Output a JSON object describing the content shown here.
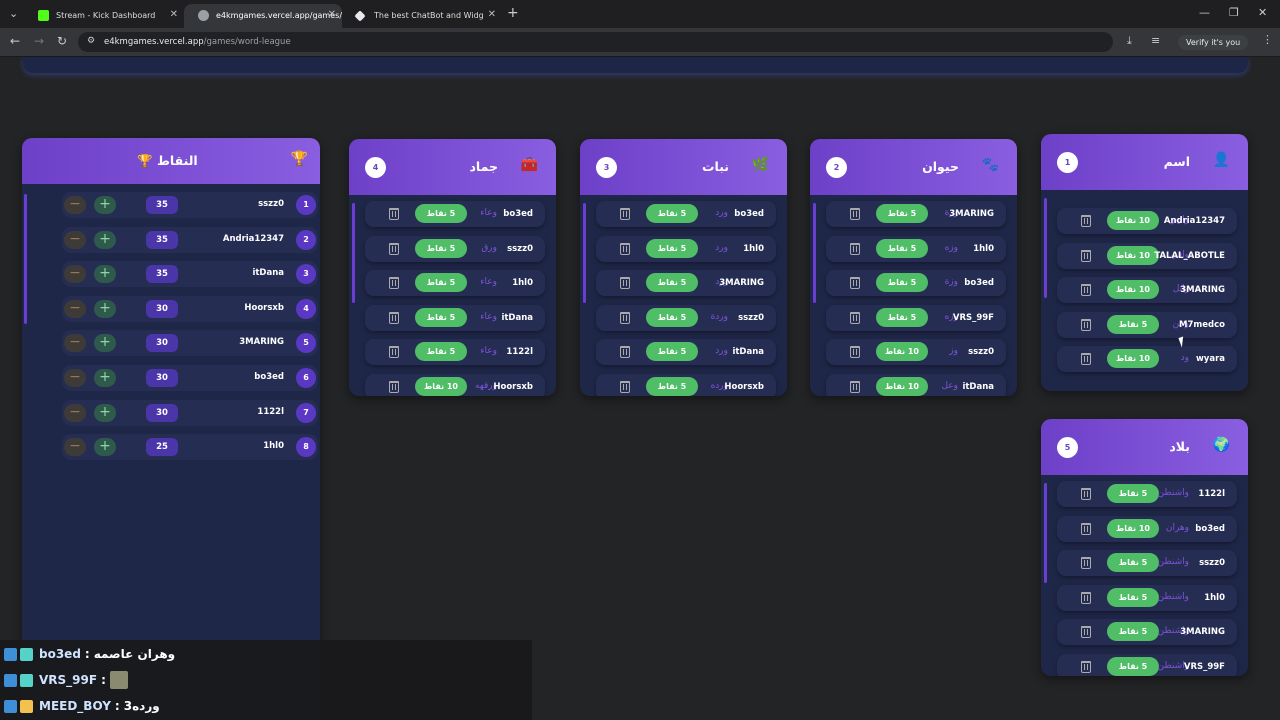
{
  "browser": {
    "tabs": [
      {
        "title": "Stream - Kick Dashboard",
        "favicon": "kick-icon",
        "color": "#53fc18"
      },
      {
        "title": "e4kmgames.vercel.app/games/...",
        "favicon": "globe-icon",
        "color": "#9aa0a6"
      },
      {
        "title": "The best ChatBot and Widg",
        "favicon": "bot-icon",
        "color": "#e8eaed"
      }
    ],
    "url_host": "e4kmgames.vercel.app",
    "url_path": "/games/word-league",
    "profile_label": "Verify it's you"
  },
  "scoreboard": {
    "title": "النقاط",
    "icon": "trophy-icon",
    "rows": [
      {
        "rank": "1",
        "name": "sszz0",
        "points": "35"
      },
      {
        "rank": "2",
        "name": "Andria12347",
        "points": "35"
      },
      {
        "rank": "3",
        "name": "itDana",
        "points": "35"
      },
      {
        "rank": "4",
        "name": "Hoorsxb",
        "points": "30"
      },
      {
        "rank": "5",
        "name": "3MARING",
        "points": "30"
      },
      {
        "rank": "6",
        "name": "bo3ed",
        "points": "30"
      },
      {
        "rank": "7",
        "name": "1122l",
        "points": "30"
      },
      {
        "rank": "8",
        "name": "1hl0",
        "points": "25"
      }
    ]
  },
  "categories": [
    {
      "id": "jamad",
      "title": "جماد",
      "number": "4",
      "icon": "toolbox-icon",
      "rows": [
        {
          "name": "bo3ed",
          "word": "وعاء",
          "points": "5 نقاط"
        },
        {
          "name": "sszz0",
          "word": "ورق",
          "points": "5 نقاط"
        },
        {
          "name": "1hl0",
          "word": "وعاء",
          "points": "5 نقاط"
        },
        {
          "name": "itDana",
          "word": "وعاء",
          "points": "5 نقاط"
        },
        {
          "name": "1122l",
          "word": "وعاء",
          "points": "5 نقاط"
        },
        {
          "name": "Hoorsxb",
          "word": "ورقهه",
          "points": "10 نقاط"
        }
      ]
    },
    {
      "id": "nabat",
      "title": "نبات",
      "number": "3",
      "icon": "leaf-icon",
      "rows": [
        {
          "name": "bo3ed",
          "word": "ورد",
          "points": "5 نقاط"
        },
        {
          "name": "1hl0",
          "word": "ورد",
          "points": "5 نقاط"
        },
        {
          "name": "3MARING",
          "word": "ورد",
          "points": "5 نقاط"
        },
        {
          "name": "sszz0",
          "word": "وردة",
          "points": "5 نقاط"
        },
        {
          "name": "itDana",
          "word": "ورد",
          "points": "5 نقاط"
        },
        {
          "name": "Hoorsxb",
          "word": "ورده",
          "points": "5 نقاط"
        }
      ]
    },
    {
      "id": "hayawan",
      "title": "حيوان",
      "number": "2",
      "icon": "paw-icon",
      "rows": [
        {
          "name": "3MARING",
          "word": "وزة",
          "points": "5 نقاط"
        },
        {
          "name": "1hl0",
          "word": "وزه",
          "points": "5 نقاط"
        },
        {
          "name": "bo3ed",
          "word": "وزة",
          "points": "5 نقاط"
        },
        {
          "name": "VRS_99F",
          "word": "وزه",
          "points": "5 نقاط"
        },
        {
          "name": "sszz0",
          "word": "وز",
          "points": "10 نقاط"
        },
        {
          "name": "itDana",
          "word": "وعل",
          "points": "10 نقاط"
        }
      ]
    },
    {
      "id": "ism",
      "title": "اسم",
      "number": "1",
      "icon": "person-icon",
      "rows": [
        {
          "name": "Andria12347",
          "word": "وارين",
          "points": "10 نقاط"
        },
        {
          "name": "TALAL_ABOTLE",
          "word": "وافي",
          "points": "10 نقاط"
        },
        {
          "name": "3MARING",
          "word": "وائل",
          "points": "10 نقاط"
        },
        {
          "name": "M7medco",
          "word": "وتين",
          "points": "5 نقاط"
        },
        {
          "name": "wyara",
          "word": "ود",
          "points": "10 نقاط"
        }
      ]
    },
    {
      "id": "bilad",
      "title": "بلاد",
      "number": "5",
      "icon": "globe-icon",
      "rows": [
        {
          "name": "1122l",
          "word": "واشنطن",
          "points": "5 نقاط"
        },
        {
          "name": "bo3ed",
          "word": "وهران",
          "points": "10 نقاط"
        },
        {
          "name": "sszz0",
          "word": "واشنطن",
          "points": "5 نقاط"
        },
        {
          "name": "1hl0",
          "word": "واشنطن",
          "points": "5 نقاط"
        },
        {
          "name": "3MARING",
          "word": "واشنطن",
          "points": "5 نقاط"
        },
        {
          "name": "VRS_99F",
          "word": "واشنطن",
          "points": "5 نقاط"
        }
      ]
    }
  ],
  "chat": [
    {
      "user": "bo3ed",
      "message": "وهران عاصمه",
      "color": "#55d3c8"
    },
    {
      "user": "VRS_99F",
      "message": "",
      "color": "#55d3c8"
    },
    {
      "user": "MEED_BOY",
      "message": "ورده3",
      "color": "#f2c14e"
    }
  ]
}
